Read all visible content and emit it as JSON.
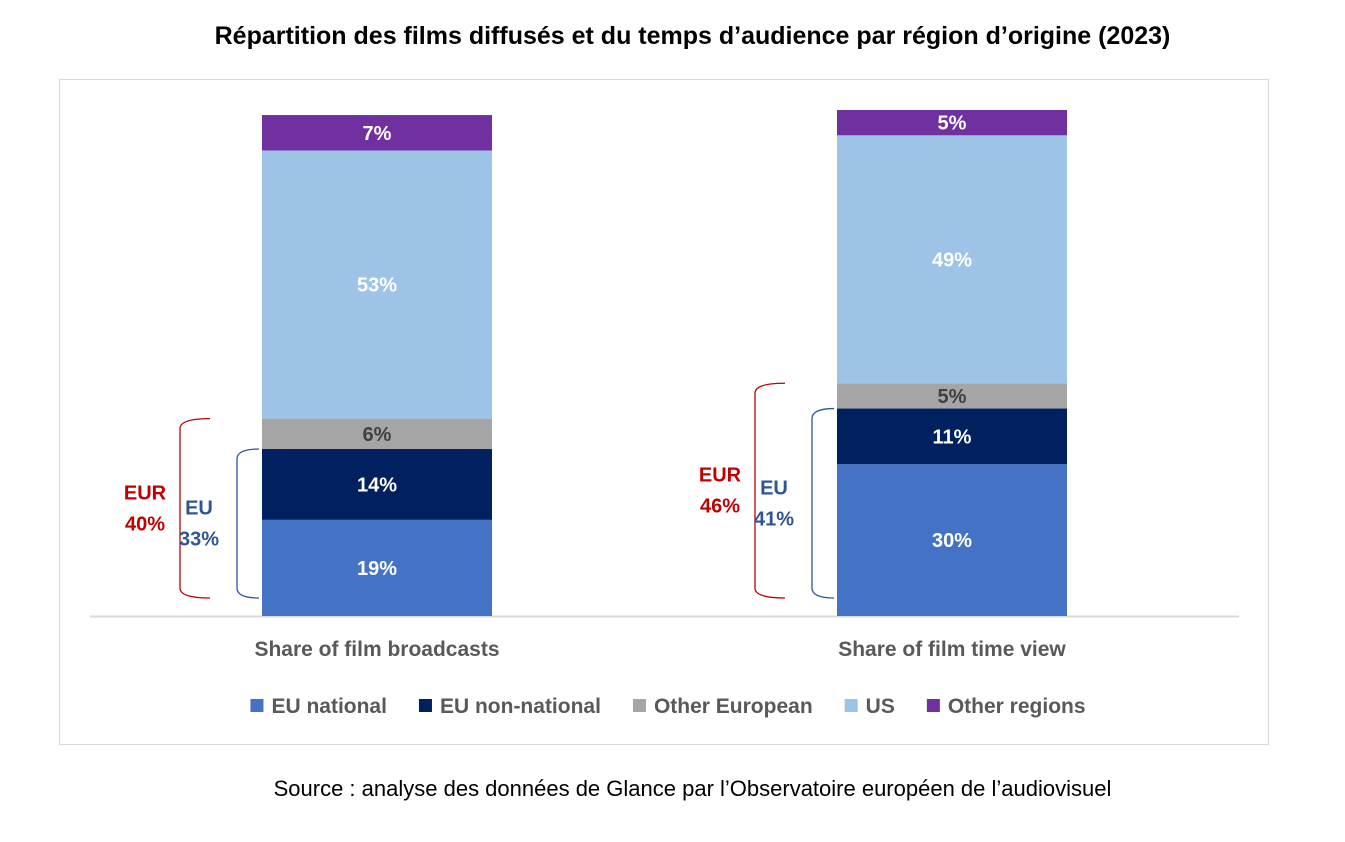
{
  "title": "Répartition des films diffusés et du temps d’audience par région d’origine (2023)",
  "source": "Source : analyse des données de Glance par l’Observatoire européen de l’audiovisuel",
  "chart_data": {
    "type": "bar",
    "stacked": true,
    "percent": true,
    "categories": [
      "Share of film broadcasts",
      "Share of film time view"
    ],
    "series": [
      {
        "name": "EU national",
        "values": [
          19,
          30
        ],
        "color": "#4472c4",
        "label_color": "#ffffff"
      },
      {
        "name": "EU non-national",
        "values": [
          14,
          11
        ],
        "color": "#002060",
        "label_color": "#ffffff"
      },
      {
        "name": "Other European",
        "values": [
          6,
          5
        ],
        "color": "#a5a5a5",
        "label_color": "#404040"
      },
      {
        "name": "US",
        "values": [
          53,
          49
        ],
        "color": "#9dc3e6",
        "label_color": "#ffffff"
      },
      {
        "name": "Other regions",
        "values": [
          7,
          5
        ],
        "color": "#7030a0",
        "label_color": "#ffffff"
      }
    ],
    "data_labels": [
      [
        "19%",
        "14%",
        "6%",
        "53%",
        "7%"
      ],
      [
        "30%",
        "11%",
        "5%",
        "49%",
        "5%"
      ]
    ],
    "annotations": [
      {
        "group": "EUR",
        "values": [
          "40%",
          "46%"
        ],
        "color": "#c00000",
        "spans_series": 3
      },
      {
        "group": "EU",
        "values": [
          "33%",
          "41%"
        ],
        "color": "#2f5597",
        "spans_series": 2
      }
    ],
    "legend_position": "bottom",
    "ylim": [
      0,
      100
    ],
    "grid": false
  }
}
